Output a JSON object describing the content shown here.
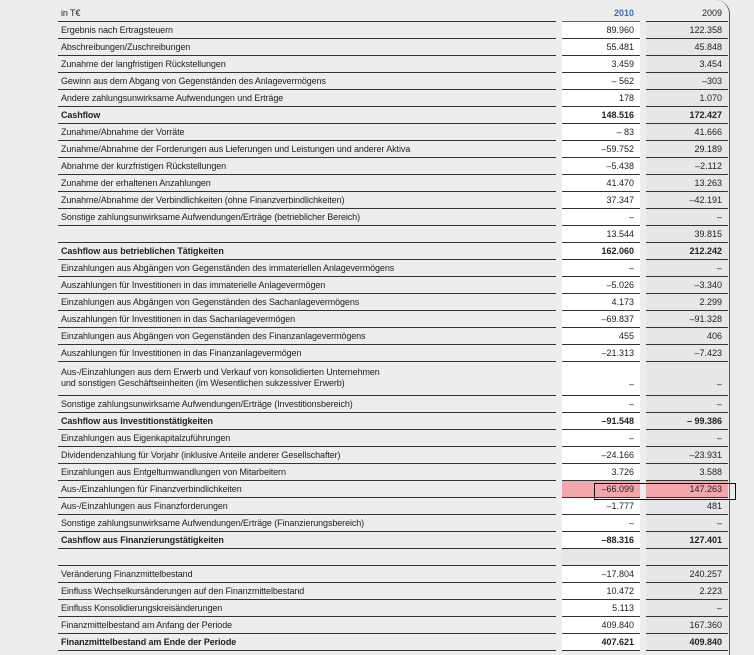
{
  "header": {
    "unit": "in T€",
    "year_current": "2010",
    "year_prior": "2009"
  },
  "rows": [
    {
      "label": "Ergebnis nach Ertragsteuern",
      "v2010": "89.960",
      "v2009": "122.358"
    },
    {
      "label": "Abschreibungen/Zuschreibungen",
      "v2010": "55.481",
      "v2009": "45.848"
    },
    {
      "label": "Zunahme der langfristigen Rückstellungen",
      "v2010": "3.459",
      "v2009": "3.454"
    },
    {
      "label": "Gewinn aus dem Abgang von Gegenständen des Anlagevermögens",
      "v2010": "– 562",
      "v2009": "–303"
    },
    {
      "label": "Andere zahlungsunwirksame Aufwendungen und Erträge",
      "v2010": "178",
      "v2009": "1.070"
    },
    {
      "label": "Cashflow",
      "v2010": "148.516",
      "v2009": "172.427",
      "bold": true
    },
    {
      "label": "Zunahme/Abnahme der Vorräte",
      "v2010": "– 83",
      "v2009": "41.666"
    },
    {
      "label": "Zunahme/Abnahme der Forderungen aus Lieferungen und Leistungen und anderer Aktiva",
      "v2010": "–59.752",
      "v2009": "29.189"
    },
    {
      "label": "Abnahme der kurzfristigen Rückstellungen",
      "v2010": "–5.438",
      "v2009": "–2.112"
    },
    {
      "label": "Zunahme der erhaltenen Anzahlungen",
      "v2010": "41.470",
      "v2009": "13.263"
    },
    {
      "label": "Zunahme/Abnahme der Verbindlichkeiten (ohne Finanzverbindlichkeiten)",
      "v2010": "37.347",
      "v2009": "–42.191"
    },
    {
      "label": "Sonstige zahlungsunwirksame Aufwendungen/Erträge (betrieblicher Bereich)",
      "v2010": "–",
      "v2009": "–"
    },
    {
      "label": "",
      "v2010": "13.544",
      "v2009": "39.815"
    },
    {
      "label": "Cashflow aus betrieblichen Tätigkeiten",
      "v2010": "162.060",
      "v2009": "212.242",
      "bold": true
    },
    {
      "label": "Einzahlungen aus Abgängen von Gegenständen des immateriellen Anlagevermögens",
      "v2010": "–",
      "v2009": "–"
    },
    {
      "label": "Auszahlungen für Investitionen in das immaterielle Anlagevermögen",
      "v2010": "–5.026",
      "v2009": "–3.340"
    },
    {
      "label": "Einzahlungen aus Abgängen von Gegenständen des Sachanlagevermögens",
      "v2010": "4.173",
      "v2009": "2.299"
    },
    {
      "label": "Auszahlungen für Investitionen in das Sachanlagevermögen",
      "v2010": "–69.837",
      "v2009": "–91.328"
    },
    {
      "label": "Einzahlungen aus Abgängen von Gegenständen des Finanzanlagevermögens",
      "v2010": "455",
      "v2009": "406"
    },
    {
      "label": "Auszahlungen für Investitionen in das Finanzanlagevermögen",
      "v2010": "–21.313",
      "v2009": "–7.423"
    },
    {
      "label": "Aus-/Einzahlungen aus dem Erwerb und Verkauf von konsolidierten Unternehmen",
      "label2": "und sonstigen Geschäftseinheiten (im Wesentlichen sukzessiver Erwerb)",
      "v2010": "–",
      "v2009": "–",
      "tall": true
    },
    {
      "label": "Sonstige zahlungsunwirksame Aufwendungen/Erträge (Investitionsbereich)",
      "v2010": "–",
      "v2009": "–"
    },
    {
      "label": "Cashflow aus Investitionstätigkeiten",
      "v2010": "–91.548",
      "v2009": "– 99.386",
      "bold": true
    },
    {
      "label": "Einzahlungen aus Eigenkapitalzuführungen",
      "v2010": "–",
      "v2009": "–"
    },
    {
      "label": "Dividendenzahlung für Vorjahr (inklusive Anteile anderer Gesellschafter)",
      "v2010": "–24.166",
      "v2009": "–23.931"
    },
    {
      "label": "Einzahlungen aus Entgeltumwandlungen von Mitarbeitern",
      "v2010": "3.726",
      "v2009": "3.588"
    },
    {
      "label": "Aus-/Einzahlungen für Finanzverbindlichkeiten",
      "v2010": "–66.099",
      "v2009": "147.263",
      "highlight": true
    },
    {
      "label": "Aus-/Einzahlungen aus Finanzforderungen",
      "v2010": "–1.777",
      "v2009": "481"
    },
    {
      "label": "Sonstige zahlungsunwirksame Aufwendungen/Erträge (Finanzierungsbereich)",
      "v2010": "–",
      "v2009": "–"
    },
    {
      "label": "Cashflow aus Finanzierungstätigkeiten",
      "v2010": "–88.316",
      "v2009": "127.401",
      "bold": true
    },
    {
      "label": "",
      "v2010": "",
      "v2009": "",
      "empty": true
    },
    {
      "label": "Veränderung Finanzmittelbestand",
      "v2010": "–17.804",
      "v2009": "240.257"
    },
    {
      "label": "Einfluss Wechselkursänderungen auf den Finanzmittelbestand",
      "v2010": "10.472",
      "v2009": "2.223"
    },
    {
      "label": "Einfluss Konsolidierungskreisänderungen",
      "v2010": "5.113",
      "v2009": "–"
    },
    {
      "label": "Finanzmittelbestand am Anfang der Periode",
      "v2010": "409.840",
      "v2009": "167.360"
    },
    {
      "label": "Finanzmittelbestand am Ende der Periode",
      "v2010": "407.621",
      "v2009": "409.840",
      "bold": true
    }
  ],
  "colors": {
    "highlight": "#f4a6ad",
    "year_accent": "#3b6fa8",
    "background": "#ecedef"
  }
}
